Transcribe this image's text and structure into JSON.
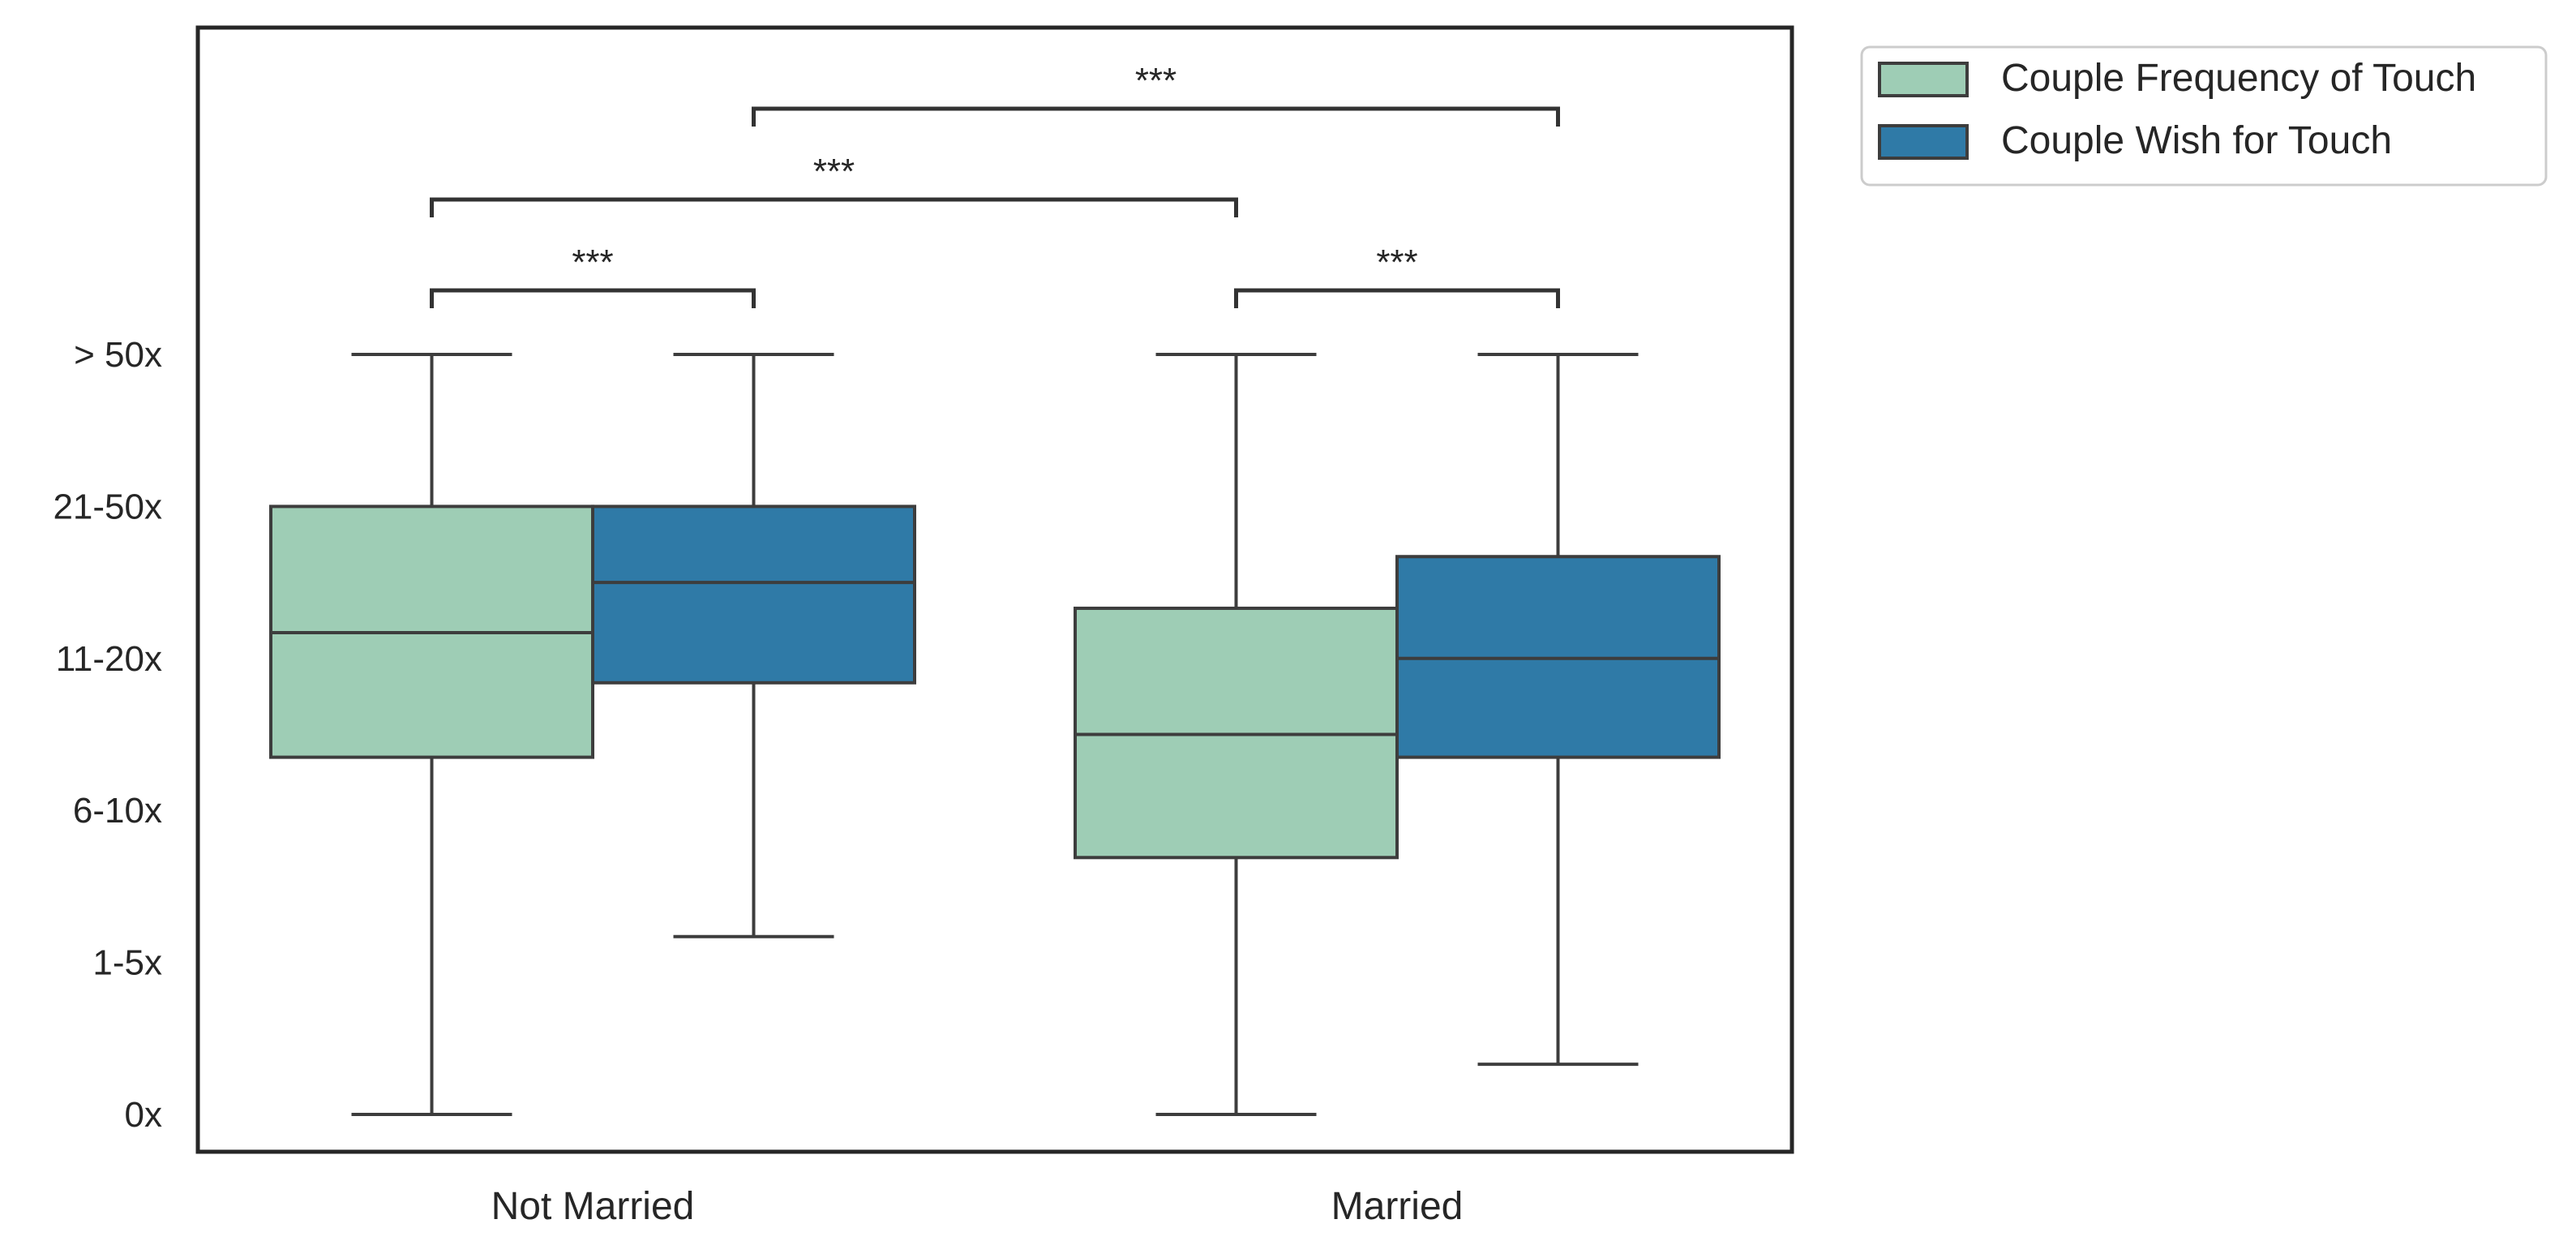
{
  "chart_data": {
    "type": "box",
    "categories": [
      "Not Married",
      "Married"
    ],
    "y_tick_labels": [
      "0x",
      "1-5x",
      "6-10x",
      "11-20x",
      "21-50x",
      "> 50x"
    ],
    "y_tick_values": [
      0,
      1,
      2,
      3,
      4,
      5
    ],
    "ylim": [
      -0.25,
      7.15
    ],
    "grid": false,
    "legend_position": "outside top-right",
    "series": [
      {
        "name": "Couple Frequency of Touch",
        "color": "#9ecdb5",
        "boxes": [
          {
            "whisker_low": 0,
            "q1": 2.35,
            "median": 3.17,
            "q3": 4.0,
            "whisker_high": 5
          },
          {
            "whisker_low": 0,
            "q1": 1.69,
            "median": 2.5,
            "q3": 3.33,
            "whisker_high": 5
          }
        ]
      },
      {
        "name": "Couple Wish for Touch",
        "color": "#2f7aa7",
        "boxes": [
          {
            "whisker_low": 1.17,
            "q1": 2.84,
            "median": 3.5,
            "q3": 4.0,
            "whisker_high": 5
          },
          {
            "whisker_low": 0.33,
            "q1": 2.35,
            "median": 3.0,
            "q3": 3.67,
            "whisker_high": 5
          }
        ]
      }
    ],
    "significance": [
      {
        "from": [
          0,
          0
        ],
        "to": [
          0,
          1
        ],
        "label": "***",
        "level": 0
      },
      {
        "from": [
          1,
          0
        ],
        "to": [
          1,
          1
        ],
        "label": "***",
        "level": 0
      },
      {
        "from": [
          0,
          0
        ],
        "to": [
          1,
          0
        ],
        "label": "***",
        "level": 1
      },
      {
        "from": [
          0,
          1
        ],
        "to": [
          1,
          1
        ],
        "label": "***",
        "level": 2
      }
    ]
  }
}
